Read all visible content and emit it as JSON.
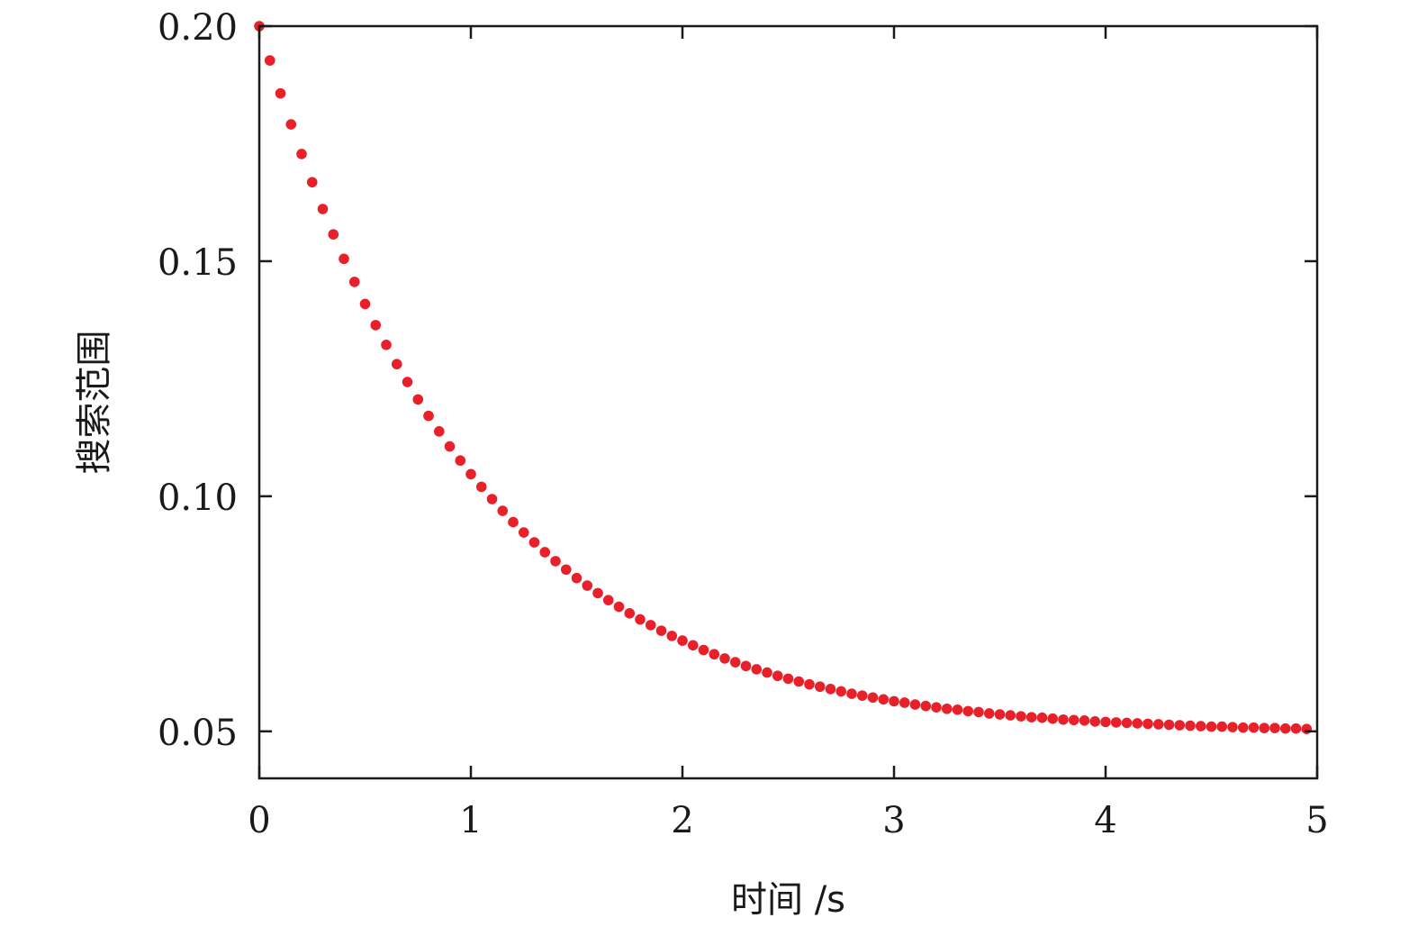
{
  "chart_data": {
    "type": "scatter",
    "title": "",
    "xlabel": "时间 /s",
    "ylabel": "搜索范围",
    "xlim": [
      0,
      5
    ],
    "ylim": [
      0.04,
      0.2
    ],
    "x_ticks": [
      "0",
      "1",
      "2",
      "3",
      "4",
      "5"
    ],
    "y_ticks": [
      "0.05",
      "0.10",
      "0.15",
      "0.20"
    ],
    "x_tick_values": [
      0,
      1,
      2,
      3,
      4,
      5
    ],
    "y_tick_values": [
      0.05,
      0.1,
      0.15,
      0.2
    ],
    "grid": false,
    "marker_color": "#e8202a",
    "series": [
      {
        "x": [
          0,
          0.05,
          0.1,
          0.15,
          0.2,
          0.25,
          0.3,
          0.35,
          0.4,
          0.45,
          0.5,
          0.55,
          0.6,
          0.65,
          0.7,
          0.75,
          0.8,
          0.85,
          0.9,
          0.95,
          1,
          1.05,
          1.1,
          1.15,
          1.2,
          1.25,
          1.3,
          1.35,
          1.4,
          1.45,
          1.5,
          1.55,
          1.6,
          1.65,
          1.7,
          1.75,
          1.8,
          1.85,
          1.9,
          1.95,
          2,
          2.05,
          2.1,
          2.15,
          2.2,
          2.25,
          2.3,
          2.35,
          2.4,
          2.45,
          2.5,
          2.55,
          2.6,
          2.65,
          2.7,
          2.75,
          2.8,
          2.85,
          2.9,
          2.95,
          3,
          3.05,
          3.1,
          3.15,
          3.2,
          3.25,
          3.3,
          3.35,
          3.4,
          3.45,
          3.5,
          3.55,
          3.6,
          3.65,
          3.7,
          3.75,
          3.8,
          3.85,
          3.9,
          3.95,
          4,
          4.05,
          4.1,
          4.15,
          4.2,
          4.25,
          4.3,
          4.35,
          4.4,
          4.45,
          4.5,
          4.55,
          4.6,
          4.65,
          4.7,
          4.75,
          4.8,
          4.85,
          4.9,
          4.95
        ],
        "y": [
          0.2,
          0.1927,
          0.1857,
          0.1791,
          0.1728,
          0.1668,
          0.1611,
          0.1557,
          0.1505,
          0.1456,
          0.1409,
          0.1364,
          0.1322,
          0.1281,
          0.1243,
          0.1206,
          0.1171,
          0.1138,
          0.1106,
          0.1076,
          0.1047,
          0.102,
          0.0994,
          0.0969,
          0.0945,
          0.0923,
          0.0902,
          0.0881,
          0.0862,
          0.0844,
          0.0826,
          0.081,
          0.0794,
          0.0779,
          0.0765,
          0.0751,
          0.0738,
          0.0726,
          0.0714,
          0.0703,
          0.0693,
          0.0683,
          0.0673,
          0.0664,
          0.0655,
          0.0647,
          0.0639,
          0.0632,
          0.0625,
          0.0618,
          0.0612,
          0.0606,
          0.06,
          0.0595,
          0.059,
          0.0585,
          0.058,
          0.0576,
          0.0572,
          0.0568,
          0.0564,
          0.0561,
          0.0557,
          0.0554,
          0.0551,
          0.0548,
          0.0546,
          0.0543,
          0.0541,
          0.0538,
          0.0536,
          0.0534,
          0.0532,
          0.053,
          0.0529,
          0.0527,
          0.0525,
          0.0524,
          0.0523,
          0.0521,
          0.052,
          0.0519,
          0.0518,
          0.0517,
          0.0516,
          0.0515,
          0.0514,
          0.0513,
          0.0512,
          0.0511,
          0.051,
          0.051,
          0.0509,
          0.0508,
          0.0508,
          0.0507,
          0.0507,
          0.0506,
          0.0506,
          0.0505
        ]
      }
    ]
  }
}
